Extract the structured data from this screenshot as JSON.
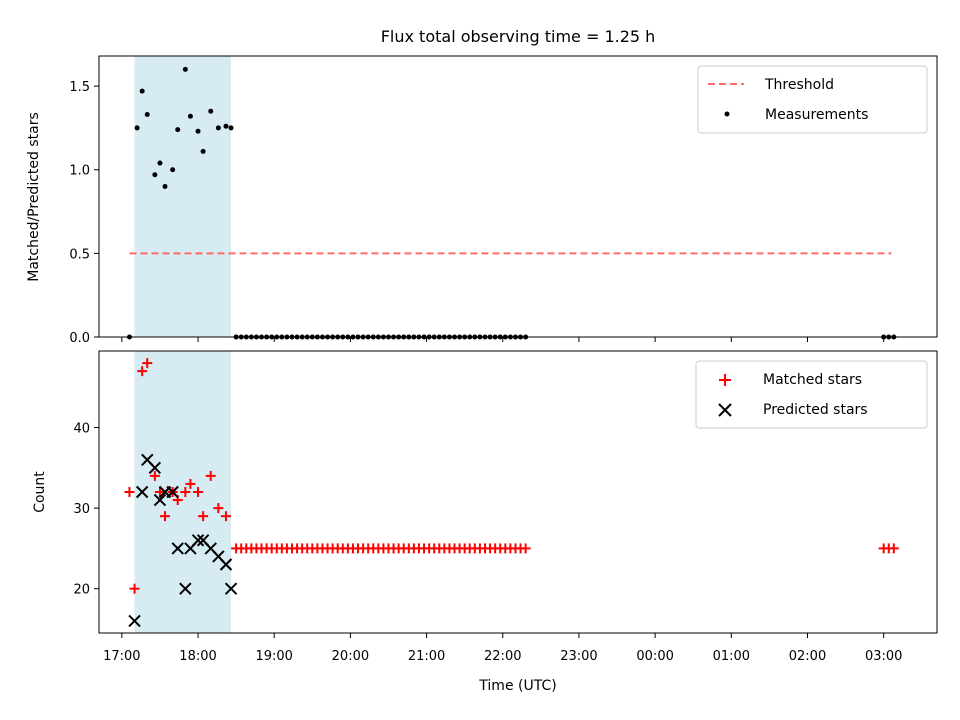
{
  "chart_data": [
    {
      "type": "scatter",
      "title": "Flux total observing time = 1.25 h",
      "ylabel": "Matched/Predicted stars",
      "xlabel": "",
      "xlim": [
        "16:42",
        "03:42"
      ],
      "ylim": [
        0,
        1.68
      ],
      "yticks": [
        0.0,
        0.5,
        1.0,
        1.5
      ],
      "ytick_labels": [
        "0.0",
        "0.5",
        "1.0",
        "1.5"
      ],
      "grid": false,
      "legend_position": "top-right",
      "shaded_span": {
        "start": "17:10",
        "end": "18:26",
        "color": "#add8e6"
      },
      "threshold": {
        "name": "Threshold",
        "y": 0.5,
        "x_start": "17:06",
        "x_end": "03:06",
        "color": "#ff6b6b",
        "style": "dashed"
      },
      "series": [
        {
          "name": "Measurements",
          "color": "#000000",
          "marker": "dot",
          "points": [
            [
              "17:06",
              0.0
            ],
            [
              "17:12",
              1.25
            ],
            [
              "17:16",
              1.47
            ],
            [
              "17:20",
              1.33
            ],
            [
              "17:26",
              0.97
            ],
            [
              "17:30",
              1.04
            ],
            [
              "17:34",
              0.9
            ],
            [
              "17:40",
              1.0
            ],
            [
              "17:44",
              1.24
            ],
            [
              "17:50",
              1.6
            ],
            [
              "17:54",
              1.32
            ],
            [
              "18:00",
              1.23
            ],
            [
              "18:04",
              1.11
            ],
            [
              "18:10",
              1.35
            ],
            [
              "18:16",
              1.25
            ],
            [
              "18:22",
              1.26
            ],
            [
              "18:26",
              1.25
            ],
            [
              "18:30",
              0.0
            ],
            [
              "18:34",
              0.0
            ],
            [
              "18:38",
              0.0
            ],
            [
              "18:42",
              0.0
            ],
            [
              "18:46",
              0.0
            ],
            [
              "18:50",
              0.0
            ],
            [
              "18:54",
              0.0
            ],
            [
              "18:58",
              0.0
            ],
            [
              "19:02",
              0.0
            ],
            [
              "19:06",
              0.0
            ],
            [
              "19:10",
              0.0
            ],
            [
              "19:14",
              0.0
            ],
            [
              "19:18",
              0.0
            ],
            [
              "19:22",
              0.0
            ],
            [
              "19:26",
              0.0
            ],
            [
              "19:30",
              0.0
            ],
            [
              "19:34",
              0.0
            ],
            [
              "19:38",
              0.0
            ],
            [
              "19:42",
              0.0
            ],
            [
              "19:46",
              0.0
            ],
            [
              "19:50",
              0.0
            ],
            [
              "19:54",
              0.0
            ],
            [
              "19:58",
              0.0
            ],
            [
              "20:02",
              0.0
            ],
            [
              "20:06",
              0.0
            ],
            [
              "20:10",
              0.0
            ],
            [
              "20:14",
              0.0
            ],
            [
              "20:18",
              0.0
            ],
            [
              "20:22",
              0.0
            ],
            [
              "20:26",
              0.0
            ],
            [
              "20:30",
              0.0
            ],
            [
              "20:34",
              0.0
            ],
            [
              "20:38",
              0.0
            ],
            [
              "20:42",
              0.0
            ],
            [
              "20:46",
              0.0
            ],
            [
              "20:50",
              0.0
            ],
            [
              "20:54",
              0.0
            ],
            [
              "20:58",
              0.0
            ],
            [
              "21:02",
              0.0
            ],
            [
              "21:06",
              0.0
            ],
            [
              "21:10",
              0.0
            ],
            [
              "21:14",
              0.0
            ],
            [
              "21:18",
              0.0
            ],
            [
              "21:22",
              0.0
            ],
            [
              "21:26",
              0.0
            ],
            [
              "21:30",
              0.0
            ],
            [
              "21:34",
              0.0
            ],
            [
              "21:38",
              0.0
            ],
            [
              "21:42",
              0.0
            ],
            [
              "21:46",
              0.0
            ],
            [
              "21:50",
              0.0
            ],
            [
              "21:54",
              0.0
            ],
            [
              "21:58",
              0.0
            ],
            [
              "22:02",
              0.0
            ],
            [
              "22:06",
              0.0
            ],
            [
              "22:10",
              0.0
            ],
            [
              "22:14",
              0.0
            ],
            [
              "22:18",
              0.0
            ],
            [
              "03:00",
              0.0
            ],
            [
              "03:04",
              0.0
            ],
            [
              "03:08",
              0.0
            ]
          ]
        }
      ]
    },
    {
      "type": "scatter",
      "title": "",
      "ylabel": "Count",
      "xlabel": "Time (UTC)",
      "xlim": [
        "16:42",
        "03:42"
      ],
      "ylim": [
        14.5,
        49.5
      ],
      "yticks": [
        20,
        30,
        40
      ],
      "ytick_labels": [
        "20",
        "30",
        "40"
      ],
      "xticks": [
        "17:00",
        "18:00",
        "19:00",
        "20:00",
        "21:00",
        "22:00",
        "23:00",
        "00:00",
        "01:00",
        "02:00",
        "03:00"
      ],
      "grid": false,
      "legend_position": "top-right",
      "shaded_span": {
        "start": "17:10",
        "end": "18:26",
        "color": "#add8e6"
      },
      "series": [
        {
          "name": "Matched stars",
          "color": "#ff0000",
          "marker": "plus",
          "points": [
            [
              "17:06",
              32
            ],
            [
              "17:10",
              20
            ],
            [
              "17:16",
              47
            ],
            [
              "17:20",
              48
            ],
            [
              "17:26",
              34
            ],
            [
              "17:30",
              32
            ],
            [
              "17:34",
              29
            ],
            [
              "17:40",
              32
            ],
            [
              "17:44",
              31
            ],
            [
              "17:50",
              32
            ],
            [
              "17:54",
              33
            ],
            [
              "18:00",
              32
            ],
            [
              "18:04",
              29
            ],
            [
              "18:10",
              34
            ],
            [
              "18:16",
              30
            ],
            [
              "18:22",
              29
            ],
            [
              "18:30",
              25
            ],
            [
              "18:34",
              25
            ],
            [
              "18:38",
              25
            ],
            [
              "18:42",
              25
            ],
            [
              "18:46",
              25
            ],
            [
              "18:50",
              25
            ],
            [
              "18:54",
              25
            ],
            [
              "18:58",
              25
            ],
            [
              "19:02",
              25
            ],
            [
              "19:06",
              25
            ],
            [
              "19:10",
              25
            ],
            [
              "19:14",
              25
            ],
            [
              "19:18",
              25
            ],
            [
              "19:22",
              25
            ],
            [
              "19:26",
              25
            ],
            [
              "19:30",
              25
            ],
            [
              "19:34",
              25
            ],
            [
              "19:38",
              25
            ],
            [
              "19:42",
              25
            ],
            [
              "19:46",
              25
            ],
            [
              "19:50",
              25
            ],
            [
              "19:54",
              25
            ],
            [
              "19:58",
              25
            ],
            [
              "20:02",
              25
            ],
            [
              "20:06",
              25
            ],
            [
              "20:10",
              25
            ],
            [
              "20:14",
              25
            ],
            [
              "20:18",
              25
            ],
            [
              "20:22",
              25
            ],
            [
              "20:26",
              25
            ],
            [
              "20:30",
              25
            ],
            [
              "20:34",
              25
            ],
            [
              "20:38",
              25
            ],
            [
              "20:42",
              25
            ],
            [
              "20:46",
              25
            ],
            [
              "20:50",
              25
            ],
            [
              "20:54",
              25
            ],
            [
              "20:58",
              25
            ],
            [
              "21:02",
              25
            ],
            [
              "21:06",
              25
            ],
            [
              "21:10",
              25
            ],
            [
              "21:14",
              25
            ],
            [
              "21:18",
              25
            ],
            [
              "21:22",
              25
            ],
            [
              "21:26",
              25
            ],
            [
              "21:30",
              25
            ],
            [
              "21:34",
              25
            ],
            [
              "21:38",
              25
            ],
            [
              "21:42",
              25
            ],
            [
              "21:46",
              25
            ],
            [
              "21:50",
              25
            ],
            [
              "21:54",
              25
            ],
            [
              "21:58",
              25
            ],
            [
              "22:02",
              25
            ],
            [
              "22:06",
              25
            ],
            [
              "22:10",
              25
            ],
            [
              "22:14",
              25
            ],
            [
              "22:18",
              25
            ],
            [
              "03:00",
              25
            ],
            [
              "03:04",
              25
            ],
            [
              "03:08",
              25
            ]
          ]
        },
        {
          "name": "Predicted stars",
          "color": "#000000",
          "marker": "x",
          "points": [
            [
              "17:10",
              16
            ],
            [
              "17:16",
              32
            ],
            [
              "17:20",
              36
            ],
            [
              "17:26",
              35
            ],
            [
              "17:30",
              31
            ],
            [
              "17:34",
              32
            ],
            [
              "17:40",
              32
            ],
            [
              "17:44",
              25
            ],
            [
              "17:50",
              20
            ],
            [
              "17:54",
              25
            ],
            [
              "18:00",
              26
            ],
            [
              "18:04",
              26
            ],
            [
              "18:10",
              25
            ],
            [
              "18:16",
              24
            ],
            [
              "18:22",
              23
            ],
            [
              "18:26",
              20
            ]
          ]
        }
      ]
    }
  ]
}
